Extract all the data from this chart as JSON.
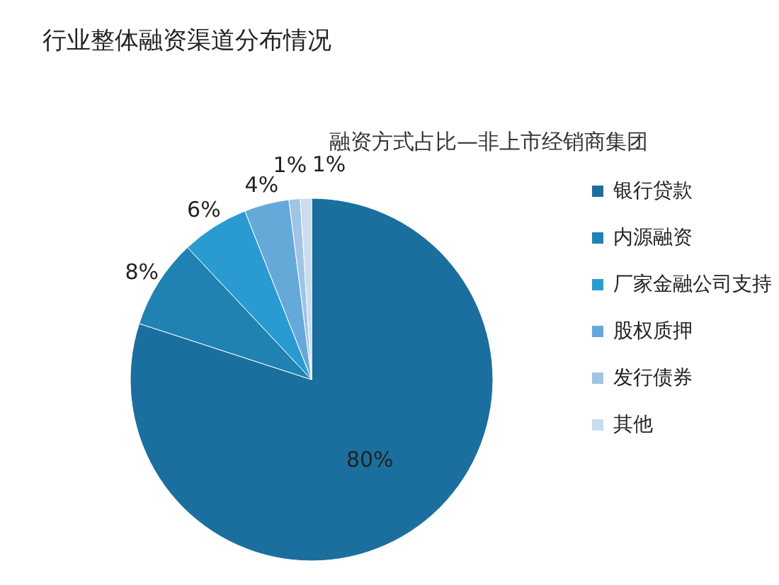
{
  "chart_data": {
    "type": "pie",
    "title": "行业整体融资渠道分布情况",
    "subtitle": "融资方式占比—非上市经销商集团",
    "categories": [
      "银行贷款",
      "内源融资",
      "厂家金融公司支持",
      "股权质押",
      "发行债券",
      "其他"
    ],
    "values": [
      80,
      8,
      6,
      4,
      1,
      1
    ],
    "colors": [
      "#1b6f9e",
      "#1f82b3",
      "#2a9bd0",
      "#65a9d9",
      "#9fc4e6",
      "#c9dcf0"
    ],
    "value_labels": [
      "80%",
      "8%",
      "6%",
      "4%",
      "1%",
      "1%"
    ],
    "legend": "right"
  }
}
